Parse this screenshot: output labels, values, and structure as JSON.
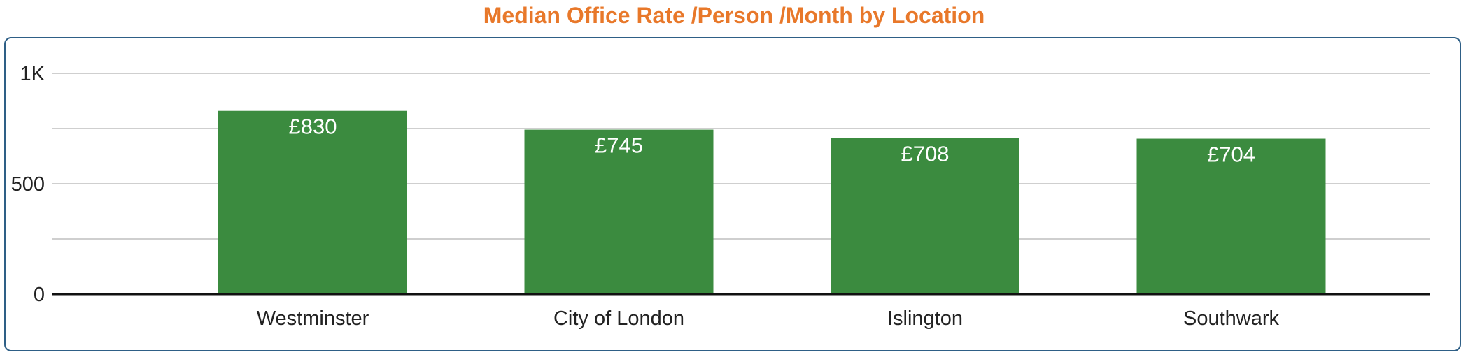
{
  "chart_data": {
    "type": "bar",
    "title": "Median Office Rate /Person /Month by Location",
    "categories": [
      "Westminster",
      "City of London",
      "Islington",
      "Southwark"
    ],
    "values": [
      830,
      745,
      708,
      704
    ],
    "data_labels": [
      "£830",
      "£745",
      "£708",
      "£704"
    ],
    "ylim": [
      0,
      1000
    ],
    "y_ticks": [
      {
        "value": 0,
        "label": "0"
      },
      {
        "value": 500,
        "label": "500"
      },
      {
        "value": 1000,
        "label": "1K"
      }
    ],
    "minor_gridlines": [
      250,
      750
    ],
    "xlabel": "",
    "ylabel": "",
    "grid": true,
    "legend": "none"
  },
  "colors": {
    "title": "#e8782a",
    "bar": "#3b8b3f",
    "grid": "#cfcfcf",
    "axis": "#111111",
    "frame": "#2e5f86"
  }
}
